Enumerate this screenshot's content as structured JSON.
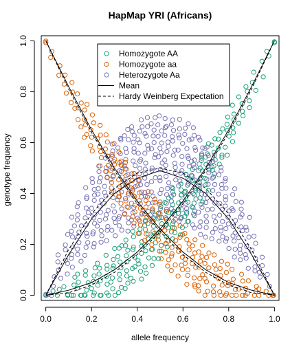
{
  "chart_data": {
    "type": "scatter",
    "title": "HapMap YRI (Africans)",
    "xlabel": "allele frequency",
    "ylabel": "genotype frequency",
    "xlim": [
      -0.02,
      1.02
    ],
    "ylim": [
      -0.02,
      1.02
    ],
    "x_ticks": [
      "0.0",
      "0.2",
      "0.4",
      "0.6",
      "0.8",
      "1.0"
    ],
    "y_ticks": [
      "0.0",
      "0.2",
      "0.4",
      "0.6",
      "0.8",
      "1.0"
    ],
    "grid": false,
    "legend_position": "top-center",
    "series": [
      {
        "name": "Homozygote AA",
        "marker": "open-circle",
        "color": "#1b9e77",
        "expected": "p^2",
        "x": [
          0.0,
          0.05,
          0.1,
          0.15,
          0.2,
          0.25,
          0.3,
          0.35,
          0.4,
          0.45,
          0.5,
          0.55,
          0.6,
          0.65,
          0.7,
          0.75,
          0.8,
          0.85,
          0.9,
          0.95,
          1.0
        ],
        "y": [
          0.0,
          0.003,
          0.01,
          0.023,
          0.04,
          0.063,
          0.09,
          0.123,
          0.16,
          0.203,
          0.25,
          0.303,
          0.36,
          0.423,
          0.49,
          0.563,
          0.64,
          0.723,
          0.81,
          0.903,
          1.0
        ],
        "scatter_spread": [
          0.0,
          0.02,
          0.04,
          0.06,
          0.07,
          0.08,
          0.09,
          0.1,
          0.1,
          0.1,
          0.1,
          0.1,
          0.1,
          0.1,
          0.09,
          0.08,
          0.07,
          0.06,
          0.04,
          0.02,
          0.0
        ]
      },
      {
        "name": "Homozygote aa",
        "marker": "open-circle",
        "color": "#d95f02",
        "expected": "(1-p)^2",
        "x": [
          0.0,
          0.05,
          0.1,
          0.15,
          0.2,
          0.25,
          0.3,
          0.35,
          0.4,
          0.45,
          0.5,
          0.55,
          0.6,
          0.65,
          0.7,
          0.75,
          0.8,
          0.85,
          0.9,
          0.95,
          1.0
        ],
        "y": [
          1.0,
          0.903,
          0.81,
          0.723,
          0.64,
          0.563,
          0.49,
          0.423,
          0.36,
          0.303,
          0.25,
          0.203,
          0.16,
          0.123,
          0.09,
          0.063,
          0.04,
          0.023,
          0.01,
          0.003,
          0.0
        ],
        "scatter_spread": [
          0.0,
          0.02,
          0.04,
          0.06,
          0.07,
          0.08,
          0.09,
          0.1,
          0.1,
          0.1,
          0.1,
          0.1,
          0.1,
          0.1,
          0.09,
          0.08,
          0.07,
          0.06,
          0.04,
          0.02,
          0.0
        ]
      },
      {
        "name": "Heterozygote Aa",
        "marker": "open-circle",
        "color": "#7570b3",
        "expected": "2p(1-p)",
        "x": [
          0.0,
          0.05,
          0.1,
          0.15,
          0.2,
          0.25,
          0.3,
          0.35,
          0.4,
          0.45,
          0.5,
          0.55,
          0.6,
          0.65,
          0.7,
          0.75,
          0.8,
          0.85,
          0.9,
          0.95,
          1.0
        ],
        "y": [
          0.0,
          0.095,
          0.18,
          0.255,
          0.32,
          0.375,
          0.42,
          0.455,
          0.48,
          0.495,
          0.5,
          0.495,
          0.48,
          0.455,
          0.42,
          0.375,
          0.32,
          0.255,
          0.18,
          0.095,
          0.0
        ],
        "scatter_spread": [
          0.0,
          0.04,
          0.08,
          0.12,
          0.14,
          0.16,
          0.18,
          0.2,
          0.2,
          0.2,
          0.2,
          0.2,
          0.2,
          0.2,
          0.18,
          0.16,
          0.14,
          0.12,
          0.08,
          0.04,
          0.0
        ]
      }
    ],
    "lines": [
      {
        "name": "Mean",
        "style": "solid",
        "color": "#000000",
        "curves": {
          "AA": {
            "x": [
              0.0,
              0.1,
              0.2,
              0.3,
              0.4,
              0.5,
              0.6,
              0.7,
              0.8,
              0.9,
              1.0
            ],
            "y": [
              0.0,
              0.02,
              0.05,
              0.1,
              0.17,
              0.26,
              0.37,
              0.5,
              0.65,
              0.82,
              1.0
            ]
          },
          "aa": {
            "x": [
              0.0,
              0.1,
              0.2,
              0.3,
              0.4,
              0.5,
              0.6,
              0.7,
              0.8,
              0.9,
              1.0
            ],
            "y": [
              1.0,
              0.82,
              0.65,
              0.5,
              0.37,
              0.26,
              0.17,
              0.1,
              0.05,
              0.02,
              0.0
            ]
          },
          "Aa": {
            "x": [
              0.0,
              0.1,
              0.2,
              0.3,
              0.4,
              0.5,
              0.6,
              0.7,
              0.8,
              0.9,
              1.0
            ],
            "y": [
              0.0,
              0.16,
              0.3,
              0.4,
              0.46,
              0.49,
              0.46,
              0.4,
              0.3,
              0.16,
              0.0
            ]
          }
        }
      },
      {
        "name": "Hardy Weinberg Expectation",
        "style": "dashed",
        "color": "#000000",
        "curves": {
          "AA": {
            "x": [
              0.0,
              0.1,
              0.2,
              0.3,
              0.4,
              0.5,
              0.6,
              0.7,
              0.8,
              0.9,
              1.0
            ],
            "y": [
              0.0,
              0.01,
              0.04,
              0.09,
              0.16,
              0.25,
              0.36,
              0.49,
              0.64,
              0.81,
              1.0
            ]
          },
          "aa": {
            "x": [
              0.0,
              0.1,
              0.2,
              0.3,
              0.4,
              0.5,
              0.6,
              0.7,
              0.8,
              0.9,
              1.0
            ],
            "y": [
              1.0,
              0.81,
              0.64,
              0.49,
              0.36,
              0.25,
              0.16,
              0.09,
              0.04,
              0.01,
              0.0
            ]
          },
          "Aa": {
            "x": [
              0.0,
              0.1,
              0.2,
              0.3,
              0.4,
              0.5,
              0.6,
              0.7,
              0.8,
              0.9,
              1.0
            ],
            "y": [
              0.0,
              0.18,
              0.32,
              0.42,
              0.48,
              0.5,
              0.48,
              0.42,
              0.32,
              0.18,
              0.0
            ]
          }
        }
      }
    ],
    "legend": [
      {
        "label": "Homozygote AA",
        "kind": "point",
        "series": 0
      },
      {
        "label": "Homozygote aa",
        "kind": "point",
        "series": 1
      },
      {
        "label": "Heterozygote Aa",
        "kind": "point",
        "series": 2
      },
      {
        "label": "Mean",
        "kind": "line",
        "line": 0
      },
      {
        "label": "Hardy Weinberg Expectation",
        "kind": "line",
        "line": 1
      }
    ]
  }
}
